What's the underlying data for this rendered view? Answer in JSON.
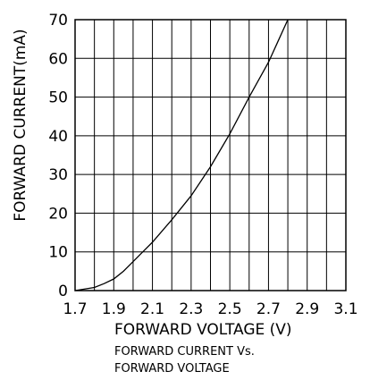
{
  "chart_data": {
    "type": "line",
    "xlabel": "FORWARD VOLTAGE (V)",
    "ylabel": "FORWARD CURRENT(mA)",
    "caption_lines": [
      "FORWARD CURRENT Vs.",
      "FORWARD VOLTAGE"
    ],
    "xlim": [
      1.7,
      3.1
    ],
    "ylim": [
      0,
      70
    ],
    "x_ticks": [
      "1.7",
      "1.9",
      "2.1",
      "2.3",
      "2.5",
      "2.7",
      "2.9",
      "3.1"
    ],
    "y_ticks": [
      "0",
      "10",
      "20",
      "30",
      "40",
      "50",
      "60",
      "70"
    ],
    "grid": true,
    "series": [
      {
        "x": [
          1.7,
          1.8,
          1.85,
          1.9,
          1.95,
          2.0,
          2.05,
          2.1,
          2.2,
          2.3,
          2.4,
          2.5,
          2.6,
          2.65,
          2.7,
          2.75,
          2.8
        ],
        "y": [
          0,
          0.8,
          1.8,
          3.0,
          5.0,
          7.5,
          10.0,
          12.5,
          18.3,
          24.5,
          32.0,
          40.5,
          50.0,
          54.5,
          59.0,
          64.5,
          70.0
        ]
      }
    ]
  }
}
